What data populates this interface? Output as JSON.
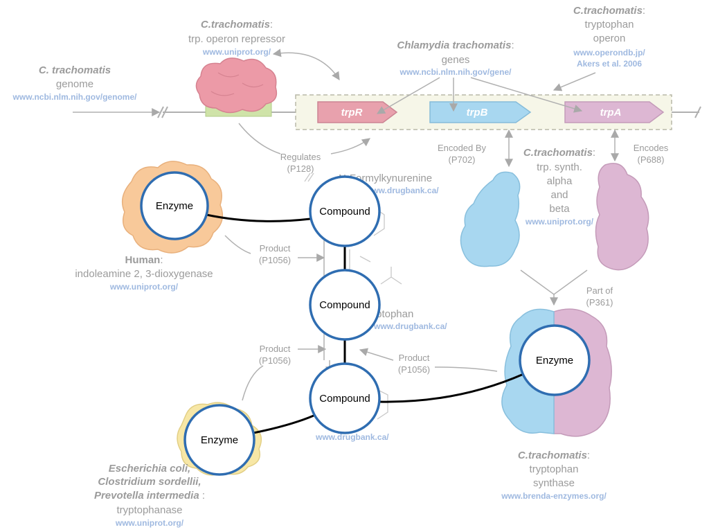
{
  "genome": {
    "organism": "C. trachomatis",
    "name": "genome",
    "link": "www.ncbi.nlm.nih.gov/genome/"
  },
  "repressor": {
    "organism": "C.trachomatis",
    "name_suffix": ":",
    "name": "trp. operon repressor",
    "link": "www.uniprot.org/"
  },
  "genes_block": {
    "organism": "Chlamydia trachomatis",
    "name_suffix": ":",
    "name": "genes",
    "link": "www.ncbi.nlm.nih.gov/gene/"
  },
  "operon": {
    "organism": "C.trachomatis",
    "name_suffix": ":",
    "name": "tryptophan",
    "name2": "operon",
    "link": "www.operondb.jp/",
    "link2": "Akers et al. 2006"
  },
  "genes": {
    "trpR": "trpR",
    "trpB": "trpB",
    "trpA": "trpA"
  },
  "regulates": {
    "label": "Regulates",
    "code": "(P128)"
  },
  "encoded_by": {
    "label": "Encoded By",
    "code": "(P702)"
  },
  "encodes": {
    "label": "Encodes",
    "code": "(P688)"
  },
  "synth_subunits": {
    "organism": "C.trachomatis",
    "name_suffix": ":",
    "line1": "trp. synth.",
    "line2": "alpha",
    "line3": "and",
    "line4": "beta",
    "link": "www.uniprot.org/"
  },
  "part_of": {
    "label": "Part of",
    "code": "(P361)"
  },
  "n_formyl": {
    "name": "N-Formylkynurenine",
    "link": "www.drugbank.ca/"
  },
  "tryptophan": {
    "name": "Tryptophan",
    "link": "www.drugbank.ca/"
  },
  "indole": {
    "link": "www.drugbank.ca/"
  },
  "product1": {
    "label": "Product",
    "code": "(P1056)"
  },
  "product2": {
    "label": "Product",
    "code": "(P1056)"
  },
  "product3": {
    "label": "Product",
    "code": "(P1056)"
  },
  "human_enzyme": {
    "organism": "Human",
    "name_suffix": ":",
    "name": "indoleamine 2, 3-dioxygenase",
    "link": "www.uniprot.org/"
  },
  "tryptophanase": {
    "organism1": "Escherichia coli,",
    "organism2": "Clostridium sordellii,",
    "organism3": "Prevotella intermedia",
    "organism3_suffix": " :",
    "name": "tryptophanase",
    "link": "www.uniprot.org/"
  },
  "synthase": {
    "organism": "C.trachomatis",
    "name_suffix": ":",
    "name": "tryptophan",
    "name2": "synthase",
    "link": "www.brenda-enzymes.org/"
  },
  "nodes": {
    "enzyme_human": "Enzyme",
    "compound_top": "Compound",
    "compound_mid": "Compound",
    "compound_bottom": "Compound",
    "enzyme_bottom_left": "Enzyme",
    "enzyme_right": "Enzyme"
  },
  "colors": {
    "red_gene": "#e8a1ad",
    "blue_gene": "#a8d7f0",
    "purple_gene": "#ddb7d3",
    "node_stroke": "#2f6db1",
    "orange_protein": "#f8c99a",
    "yellow_protein": "#f7e7a6"
  }
}
